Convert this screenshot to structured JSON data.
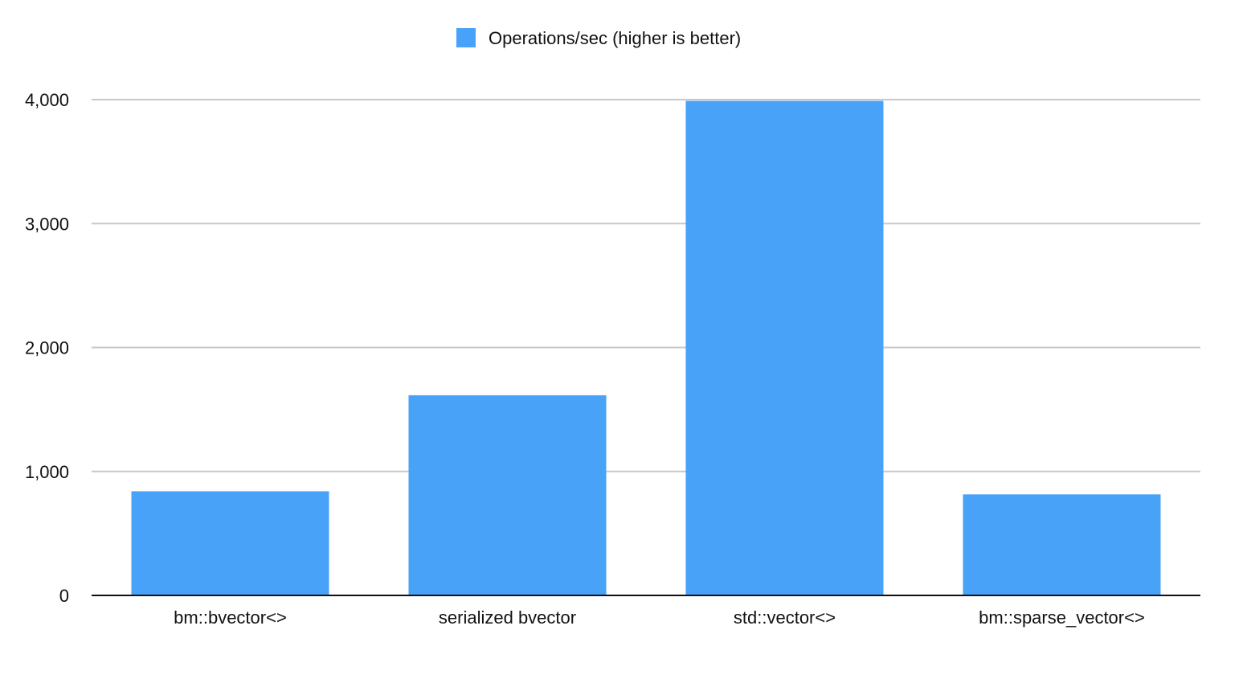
{
  "chart_data": {
    "type": "bar",
    "categories": [
      "bm::bvector<>",
      "serialized bvector",
      "std::vector<>",
      "bm::sparse_vector<>"
    ],
    "series": [
      {
        "name": "Operations/sec (higher is better)",
        "values": [
          840,
          1615,
          3990,
          815
        ],
        "color": "#47a2f8"
      }
    ],
    "yticks": [
      "0",
      "1,000",
      "2,000",
      "3,000",
      "4,000"
    ],
    "ytick_values": [
      0,
      1000,
      2000,
      3000,
      4000
    ],
    "ylim": [
      0,
      4000
    ],
    "grid": true,
    "legend_position": "top-center",
    "title": "",
    "xlabel": "",
    "ylabel": ""
  }
}
